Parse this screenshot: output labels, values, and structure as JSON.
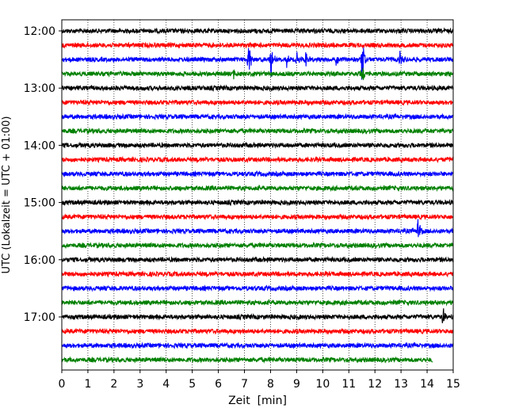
{
  "chart_data": {
    "type": "line",
    "title": "",
    "xlabel": "Zeit  [min]",
    "ylabel": "UTC (Lokalzeit = UTC + 01:00)",
    "xlim": [
      0,
      15
    ],
    "x_ticks": [
      0,
      1,
      2,
      3,
      4,
      5,
      6,
      7,
      8,
      9,
      10,
      11,
      12,
      13,
      14,
      15
    ],
    "vertical_grid": "dotted",
    "row_interval_minutes": 15,
    "row_start": "12:00",
    "rows": 24,
    "y_tick_labels": [
      "12:00",
      "13:00",
      "14:00",
      "15:00",
      "16:00",
      "17:00"
    ],
    "y_tick_row_indices": [
      0,
      4,
      8,
      12,
      16,
      20
    ],
    "series_colors": [
      "#000000",
      "#ff0000",
      "#0000ff",
      "#008000"
    ],
    "last_row_end_minute": 14.2,
    "events": [
      {
        "row": 2,
        "minute": 7.15,
        "amplitude": 3.0
      },
      {
        "row": 2,
        "minute": 8.0,
        "amplitude": 3.0
      },
      {
        "row": 2,
        "minute": 8.6,
        "amplitude": 1.2
      },
      {
        "row": 2,
        "minute": 9.0,
        "amplitude": 1.0
      },
      {
        "row": 2,
        "minute": 9.35,
        "amplitude": 1.4
      },
      {
        "row": 2,
        "minute": 10.5,
        "amplitude": 1.0
      },
      {
        "row": 2,
        "minute": 11.5,
        "amplitude": 4.0
      },
      {
        "row": 2,
        "minute": 12.95,
        "amplitude": 1.0
      },
      {
        "row": 3,
        "minute": 6.6,
        "amplitude": 0.9
      },
      {
        "row": 3,
        "minute": 11.5,
        "amplitude": 1.5
      },
      {
        "row": 14,
        "minute": 13.65,
        "amplitude": 2.0
      },
      {
        "row": 20,
        "minute": 14.6,
        "amplitude": 1.5
      }
    ]
  }
}
